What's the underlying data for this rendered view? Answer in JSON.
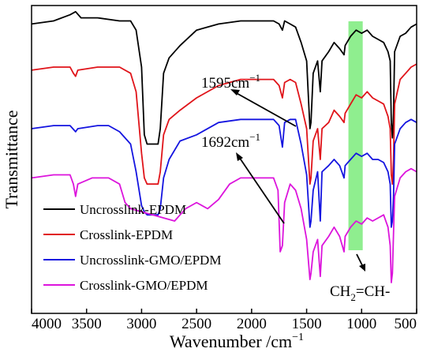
{
  "chart_data": {
    "type": "line",
    "xlabel": "Wavenumber /cm",
    "xlabel_superscript": "−1",
    "ylabel": "Transmittance",
    "xlim": [
      4000,
      500
    ],
    "x_reversed": true,
    "x_ticks": [
      "4000",
      "3500",
      "3000",
      "2500",
      "2000",
      "1500",
      "1000",
      "500"
    ],
    "x_tick_values": [
      4000,
      3500,
      3000,
      2500,
      2000,
      1500,
      1000,
      500
    ],
    "ylim": [
      0,
      100
    ],
    "y_ticks_visible": false,
    "grid": false,
    "legend_position": "bottom-left",
    "series": [
      {
        "name": "Uncrosslink-EPDM",
        "color": "#000000",
        "points": [
          [
            4000,
            94
          ],
          [
            3800,
            95
          ],
          [
            3650,
            97
          ],
          [
            3600,
            98
          ],
          [
            3550,
            96
          ],
          [
            3400,
            96
          ],
          [
            3200,
            95
          ],
          [
            3100,
            95
          ],
          [
            3050,
            92
          ],
          [
            3000,
            80
          ],
          [
            2975,
            58
          ],
          [
            2950,
            55
          ],
          [
            2900,
            55
          ],
          [
            2850,
            55
          ],
          [
            2830,
            60
          ],
          [
            2800,
            78
          ],
          [
            2750,
            83
          ],
          [
            2650,
            87
          ],
          [
            2500,
            92
          ],
          [
            2300,
            94
          ],
          [
            2100,
            95
          ],
          [
            1900,
            95
          ],
          [
            1800,
            95
          ],
          [
            1750,
            94
          ],
          [
            1720,
            92
          ],
          [
            1700,
            95
          ],
          [
            1650,
            94
          ],
          [
            1600,
            93
          ],
          [
            1550,
            88
          ],
          [
            1500,
            82
          ],
          [
            1470,
            60
          ],
          [
            1460,
            62
          ],
          [
            1440,
            78
          ],
          [
            1400,
            82
          ],
          [
            1376,
            72
          ],
          [
            1360,
            82
          ],
          [
            1300,
            85
          ],
          [
            1250,
            88
          ],
          [
            1200,
            86
          ],
          [
            1160,
            84
          ],
          [
            1150,
            87
          ],
          [
            1100,
            90
          ],
          [
            1050,
            92
          ],
          [
            1000,
            91
          ],
          [
            950,
            92
          ],
          [
            900,
            90
          ],
          [
            850,
            89
          ],
          [
            800,
            88
          ],
          [
            760,
            85
          ],
          [
            740,
            82
          ],
          [
            730,
            62
          ],
          [
            720,
            57
          ],
          [
            710,
            65
          ],
          [
            700,
            85
          ],
          [
            650,
            90
          ],
          [
            600,
            91
          ],
          [
            550,
            93
          ],
          [
            500,
            94
          ]
        ]
      },
      {
        "name": "Crosslink-EPDM",
        "color": "#e0141a",
        "points": [
          [
            4000,
            79
          ],
          [
            3800,
            80
          ],
          [
            3650,
            80
          ],
          [
            3620,
            78
          ],
          [
            3600,
            77
          ],
          [
            3580,
            79
          ],
          [
            3400,
            80
          ],
          [
            3200,
            80
          ],
          [
            3100,
            78
          ],
          [
            3050,
            72
          ],
          [
            3000,
            52
          ],
          [
            2975,
            44
          ],
          [
            2950,
            42
          ],
          [
            2900,
            42
          ],
          [
            2850,
            42
          ],
          [
            2830,
            46
          ],
          [
            2800,
            58
          ],
          [
            2750,
            63
          ],
          [
            2650,
            66
          ],
          [
            2500,
            70
          ],
          [
            2300,
            74
          ],
          [
            2100,
            76
          ],
          [
            1900,
            76
          ],
          [
            1800,
            76
          ],
          [
            1750,
            74
          ],
          [
            1720,
            70
          ],
          [
            1700,
            75
          ],
          [
            1650,
            76
          ],
          [
            1600,
            75
          ],
          [
            1550,
            68
          ],
          [
            1500,
            60
          ],
          [
            1470,
            42
          ],
          [
            1460,
            44
          ],
          [
            1440,
            56
          ],
          [
            1400,
            60
          ],
          [
            1376,
            50
          ],
          [
            1360,
            60
          ],
          [
            1300,
            62
          ],
          [
            1250,
            66
          ],
          [
            1200,
            64
          ],
          [
            1160,
            62
          ],
          [
            1150,
            65
          ],
          [
            1100,
            68
          ],
          [
            1050,
            71
          ],
          [
            1000,
            70
          ],
          [
            950,
            72
          ],
          [
            900,
            70
          ],
          [
            850,
            69
          ],
          [
            800,
            68
          ],
          [
            760,
            64
          ],
          [
            740,
            60
          ],
          [
            730,
            45
          ],
          [
            720,
            42
          ],
          [
            710,
            50
          ],
          [
            700,
            68
          ],
          [
            650,
            76
          ],
          [
            600,
            78
          ],
          [
            550,
            80
          ],
          [
            500,
            81
          ]
        ]
      },
      {
        "name": "Uncrosslink-GMO/EPDM",
        "color": "#1414e0",
        "points": [
          [
            4000,
            60
          ],
          [
            3800,
            61
          ],
          [
            3650,
            61
          ],
          [
            3600,
            59
          ],
          [
            3580,
            60
          ],
          [
            3400,
            61
          ],
          [
            3300,
            61
          ],
          [
            3200,
            59
          ],
          [
            3100,
            55
          ],
          [
            3050,
            46
          ],
          [
            3000,
            35
          ],
          [
            2975,
            33
          ],
          [
            2950,
            32
          ],
          [
            2900,
            32
          ],
          [
            2850,
            32
          ],
          [
            2830,
            34
          ],
          [
            2800,
            44
          ],
          [
            2750,
            50
          ],
          [
            2650,
            56
          ],
          [
            2500,
            58
          ],
          [
            2300,
            62
          ],
          [
            2100,
            63
          ],
          [
            1900,
            63
          ],
          [
            1800,
            63
          ],
          [
            1750,
            61
          ],
          [
            1720,
            54
          ],
          [
            1700,
            62
          ],
          [
            1650,
            63
          ],
          [
            1600,
            63
          ],
          [
            1550,
            55
          ],
          [
            1500,
            45
          ],
          [
            1470,
            28
          ],
          [
            1460,
            30
          ],
          [
            1440,
            40
          ],
          [
            1400,
            46
          ],
          [
            1376,
            30
          ],
          [
            1360,
            46
          ],
          [
            1300,
            48
          ],
          [
            1250,
            50
          ],
          [
            1200,
            48
          ],
          [
            1160,
            44
          ],
          [
            1150,
            48
          ],
          [
            1100,
            50
          ],
          [
            1050,
            52
          ],
          [
            1000,
            51
          ],
          [
            950,
            52
          ],
          [
            900,
            50
          ],
          [
            850,
            50
          ],
          [
            800,
            49
          ],
          [
            760,
            46
          ],
          [
            740,
            42
          ],
          [
            730,
            28
          ],
          [
            720,
            30
          ],
          [
            710,
            38
          ],
          [
            700,
            55
          ],
          [
            650,
            60
          ],
          [
            600,
            62
          ],
          [
            550,
            63
          ],
          [
            500,
            62
          ]
        ]
      },
      {
        "name": "Crosslink-GMO/EPDM",
        "color": "#dc14dc",
        "points": [
          [
            4000,
            44
          ],
          [
            3800,
            45
          ],
          [
            3650,
            45
          ],
          [
            3620,
            42
          ],
          [
            3600,
            38
          ],
          [
            3580,
            42
          ],
          [
            3450,
            44
          ],
          [
            3300,
            44
          ],
          [
            3200,
            42
          ],
          [
            3150,
            36
          ],
          [
            3100,
            34
          ],
          [
            2700,
            30
          ],
          [
            2650,
            32
          ],
          [
            2600,
            34
          ],
          [
            2500,
            36
          ],
          [
            2400,
            34
          ],
          [
            2300,
            37
          ],
          [
            2200,
            42
          ],
          [
            2100,
            44
          ],
          [
            2000,
            44
          ],
          [
            1900,
            44
          ],
          [
            1800,
            44
          ],
          [
            1760,
            40
          ],
          [
            1740,
            20
          ],
          [
            1720,
            22
          ],
          [
            1700,
            36
          ],
          [
            1650,
            42
          ],
          [
            1600,
            40
          ],
          [
            1550,
            34
          ],
          [
            1500,
            24
          ],
          [
            1470,
            11
          ],
          [
            1460,
            13
          ],
          [
            1440,
            20
          ],
          [
            1400,
            24
          ],
          [
            1376,
            12
          ],
          [
            1360,
            22
          ],
          [
            1300,
            25
          ],
          [
            1250,
            28
          ],
          [
            1200,
            25
          ],
          [
            1160,
            20
          ],
          [
            1150,
            25
          ],
          [
            1100,
            28
          ],
          [
            1050,
            30
          ],
          [
            1000,
            29
          ],
          [
            950,
            31
          ],
          [
            900,
            30
          ],
          [
            850,
            31
          ],
          [
            800,
            32
          ],
          [
            760,
            28
          ],
          [
            740,
            22
          ],
          [
            730,
            10
          ],
          [
            720,
            13
          ],
          [
            710,
            26
          ],
          [
            700,
            38
          ],
          [
            650,
            44
          ],
          [
            600,
            46
          ],
          [
            550,
            47
          ],
          [
            500,
            46
          ]
        ]
      }
    ],
    "annotations": [
      {
        "text": "1595cm",
        "superscript": "−1",
        "arrow_to_x": 1500
      },
      {
        "text": "1692cm",
        "superscript": "−1",
        "arrow_to_x": 1700
      },
      {
        "text": "CH",
        "subscript": "2",
        "suffix": "=CH-"
      }
    ],
    "highlight": {
      "x_range": [
        1120,
        990
      ],
      "color": "#33e033"
    }
  }
}
